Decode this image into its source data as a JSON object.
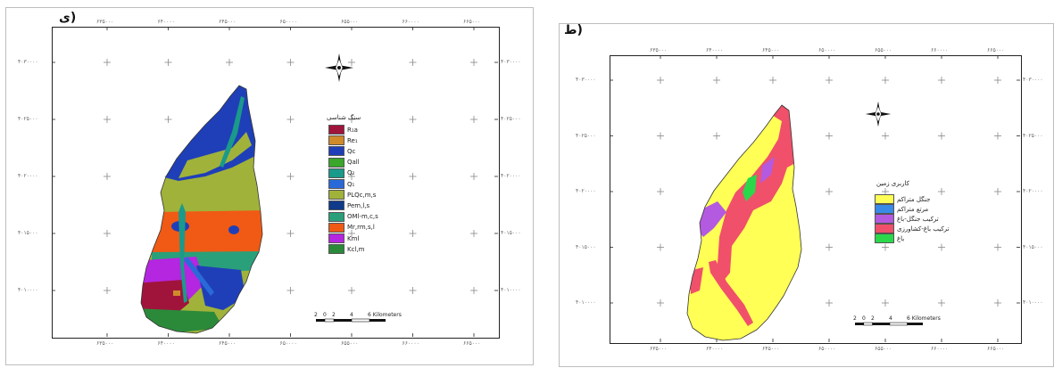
{
  "panels": [
    {
      "label": "ی)",
      "x_ticks": [
        "۶۳۵۰۰۰",
        "۶۴۰۰۰۰",
        "۶۴۵۰۰۰",
        "۶۵۰۰۰۰",
        "۶۵۵۰۰۰",
        "۶۶۰۰۰۰",
        "۶۶۵۰۰۰"
      ],
      "y_ticks": [
        "۴۰۳۰۰۰۰",
        "۴۰۲۵۰۰۰",
        "۴۰۲۰۰۰۰",
        "۴۰۱۵۰۰۰",
        "۴۰۱۰۰۰۰"
      ],
      "legend_title": "سنگ شناسی",
      "legend": [
        {
          "label": "R₁a",
          "color": "#a0143c"
        },
        {
          "label": "Re₁",
          "color": "#d08a2a"
        },
        {
          "label": "Qc",
          "color": "#1f3fb8"
        },
        {
          "label": "Qall",
          "color": "#3aa62a"
        },
        {
          "label": "Q₂",
          "color": "#1a9a8a"
        },
        {
          "label": "Q₁",
          "color": "#2a6ad8"
        },
        {
          "label": "PLQc,m,s",
          "color": "#a0b23a"
        },
        {
          "label": "Pem,l,s",
          "color": "#103a8a"
        },
        {
          "label": "OMl-m,c,s",
          "color": "#2aa07a"
        },
        {
          "label": "Mr,rm,s,l",
          "color": "#f05a14"
        },
        {
          "label": "Kml",
          "color": "#b426e0"
        },
        {
          "label": "Kcl,m",
          "color": "#2a8a3a"
        }
      ],
      "scale_labels": [
        "2",
        "0",
        "2",
        "4",
        "6 Kilometers"
      ]
    },
    {
      "label": "ط)",
      "x_ticks": [
        "۶۳۵۰۰۰",
        "۶۴۰۰۰۰",
        "۶۴۵۰۰۰",
        "۶۵۰۰۰۰",
        "۶۵۵۰۰۰",
        "۶۶۰۰۰۰",
        "۶۶۵۰۰۰"
      ],
      "y_ticks": [
        "۴۰۳۰۰۰۰",
        "۴۰۲۵۰۰۰",
        "۴۰۲۰۰۰۰",
        "۴۰۱۵۰۰۰",
        "۴۰۱۰۰۰۰"
      ],
      "legend_title": "کاربری زمین",
      "legend": [
        {
          "label": "جنگل متراکم",
          "color": "#ffff55"
        },
        {
          "label": "مرتع متراکم",
          "color": "#3a8ae8"
        },
        {
          "label": "ترکیب جنگل-باغ",
          "color": "#b45ae0"
        },
        {
          "label": "ترکیب باغ-کشاورزی",
          "color": "#f0506a"
        },
        {
          "label": "باغ",
          "color": "#2ad84a"
        }
      ],
      "scale_labels": [
        "2",
        "0",
        "2",
        "4",
        "6 Kilometers"
      ]
    }
  ],
  "colors": {
    "frame": "#222222",
    "grid_cross": "#888888",
    "border_panel": "#bdbdbd"
  }
}
